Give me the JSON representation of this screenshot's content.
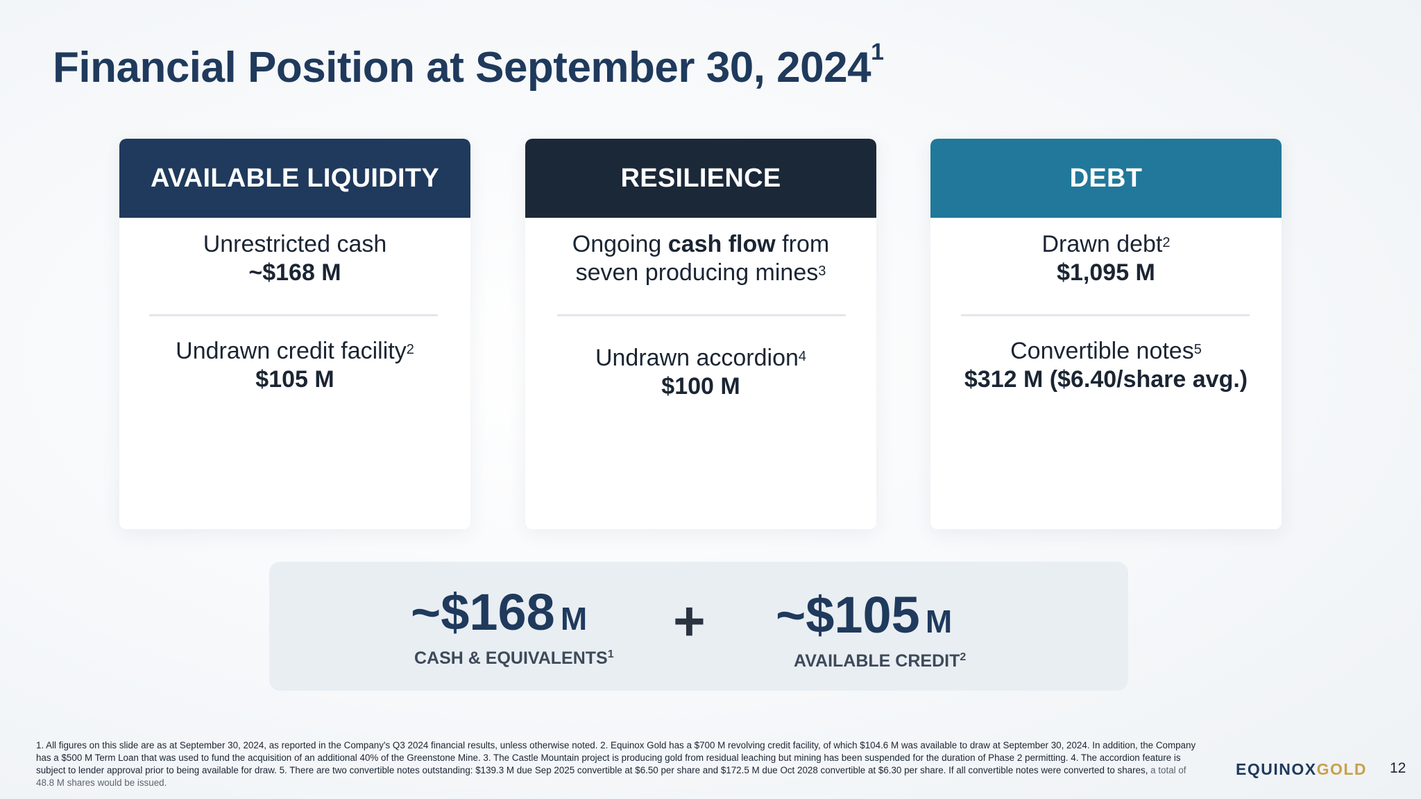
{
  "slide": {
    "title": "Financial Position at September 30, 2024",
    "title_sup": "1",
    "page_number": "12"
  },
  "cards": [
    {
      "heading": "AVAILABLE LIQUIDITY",
      "color": "#1f3a5c",
      "item1_label": "Unrestricted cash",
      "item1_value": "~$168 M",
      "item2_label": "Undrawn credit facility",
      "item2_sup": "2",
      "item2_value": "$105 M"
    },
    {
      "heading": "RESILIENCE",
      "color": "#1b2838",
      "item1_pre": "Ongoing ",
      "item1_bold": "cash flow",
      "item1_post": " from",
      "item1_line2": "seven producing mines",
      "item1_sup": "3",
      "item2_label": "Undrawn accordion",
      "item2_sup": "4",
      "item2_value": "$100 M"
    },
    {
      "heading": "DEBT",
      "color": "#21789a",
      "item1_label": "Drawn debt",
      "item1_sup": "2",
      "item1_value": "$1,095 M",
      "item2_label": "Convertible notes",
      "item2_sup": "5",
      "item2_value": "$312 M ($6.40/share avg.)"
    }
  ],
  "summary": {
    "cash_value": "~$168",
    "cash_unit": "M",
    "cash_label": "CASH & EQUIVALENTS",
    "cash_sup": "1",
    "plus": "+",
    "credit_value": "~$105",
    "credit_unit": "M",
    "credit_label": "AVAILABLE CREDIT",
    "credit_sup": "2"
  },
  "footnote": {
    "main": "1. All figures on this slide are as at September 30, 2024, as reported in the Company's Q3 2024 financial results, unless otherwise noted. 2. Equinox Gold has a $700 M revolving credit facility, of which $104.6 M was available to draw at September 30, 2024. In addition, the Company has a $500 M Term Loan that was used to fund the acquisition of an additional 40% of the Greenstone Mine. 3. The Castle Mountain project is producing gold from residual leaching but mining has been suspended for the duration of Phase 2 permitting. 4. The accordion feature is subject to lender approval prior to being available for draw. 5. There are two convertible notes outstanding: $139.3 M due Sep 2025 convertible at $6.50 per share and $172.5 M due Oct 2028 convertible at $6.30 per share. If all convertible notes were converted to shares,",
    "muted": " a total of 48.8 M shares would be issued."
  },
  "logo": {
    "part1": "EQUINOX",
    "part2": "GOLD"
  }
}
